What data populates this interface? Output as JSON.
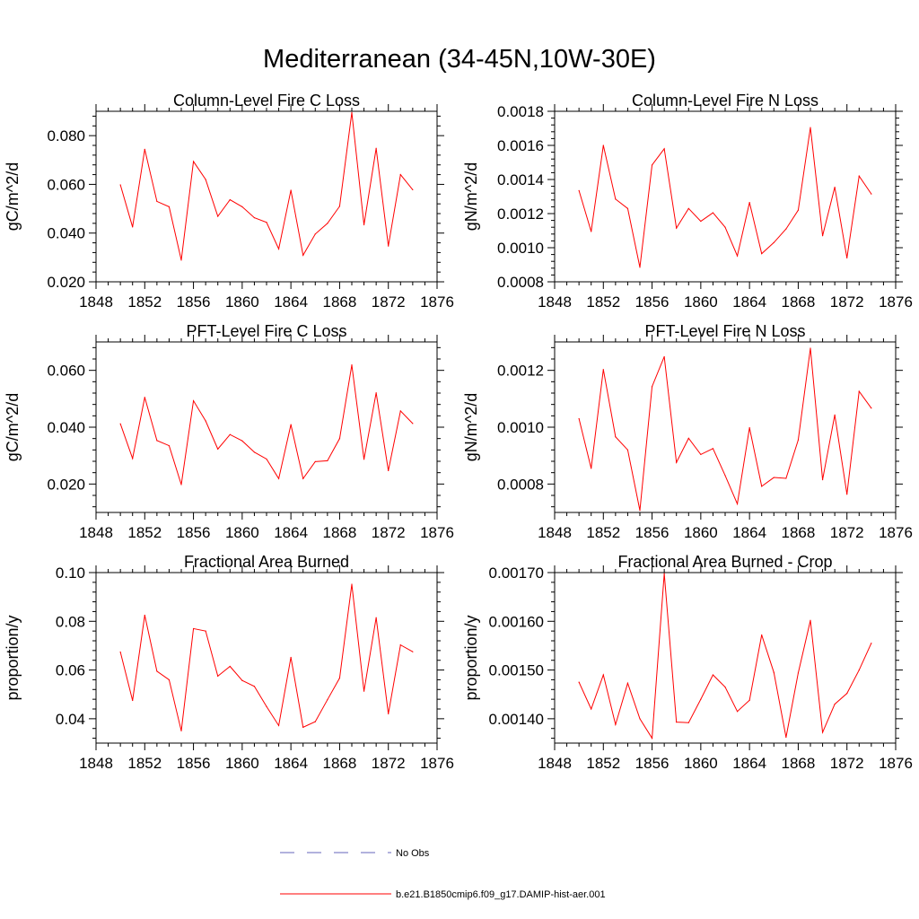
{
  "page": {
    "title": "Mediterranean (34-45N,10W-30E)"
  },
  "legend": {
    "items": [
      {
        "label": "No Obs",
        "color": "#6666bb",
        "dash": true
      },
      {
        "label": "b.e21.B1850cmip6.f09_g17.DAMIP-hist-aer.001",
        "color": "#ff0000",
        "dash": false
      }
    ]
  },
  "chart_data": [
    {
      "type": "line",
      "title": "Column-Level Fire C Loss",
      "ylabel": "gC/m^2/d",
      "xlim": [
        1848,
        1876
      ],
      "ylim": [
        0.02,
        0.09
      ],
      "xticks": [
        "1848",
        "1852",
        "1856",
        "1860",
        "1864",
        "1868",
        "1872",
        "1876"
      ],
      "yticks": [
        0.02,
        0.04,
        0.06,
        0.08
      ],
      "ytick_labels": [
        "0.020",
        "0.040",
        "0.060",
        "0.080"
      ],
      "x": [
        1850,
        1851,
        1852,
        1853,
        1854,
        1855,
        1856,
        1857,
        1858,
        1859,
        1860,
        1861,
        1862,
        1863,
        1864,
        1865,
        1866,
        1867,
        1868,
        1869,
        1870,
        1871,
        1872,
        1873,
        1874
      ],
      "series": [
        {
          "color": "#ff0000",
          "values": [
            0.0598,
            0.0425,
            0.0744,
            0.053,
            0.0508,
            0.0289,
            0.0694,
            0.062,
            0.0469,
            0.0537,
            0.0508,
            0.0463,
            0.0444,
            0.0335,
            0.0576,
            0.0309,
            0.0396,
            0.044,
            0.051,
            0.0895,
            0.0434,
            0.0748,
            0.0347,
            0.064,
            0.0578
          ]
        }
      ]
    },
    {
      "type": "line",
      "title": "Column-Level Fire N Loss",
      "ylabel": "gN/m^2/d",
      "xlim": [
        1848,
        1876
      ],
      "ylim": [
        0.0008,
        0.0018
      ],
      "xticks": [
        "1848",
        "1852",
        "1856",
        "1860",
        "1864",
        "1868",
        "1872",
        "1876"
      ],
      "yticks": [
        0.0008,
        0.001,
        0.0012,
        0.0014,
        0.0016,
        0.0018
      ],
      "ytick_labels": [
        "0.0008",
        "0.0010",
        "0.0012",
        "0.0014",
        "0.0016",
        "0.0018"
      ],
      "x": [
        1850,
        1851,
        1852,
        1853,
        1854,
        1855,
        1856,
        1857,
        1858,
        1859,
        1860,
        1861,
        1862,
        1863,
        1864,
        1865,
        1866,
        1867,
        1868,
        1869,
        1870,
        1871,
        1872,
        1873,
        1874
      ],
      "series": [
        {
          "color": "#ff0000",
          "values": [
            0.001335,
            0.001095,
            0.0016,
            0.001285,
            0.00123,
            0.000885,
            0.001485,
            0.00158,
            0.001115,
            0.00123,
            0.001155,
            0.001205,
            0.00112,
            0.000952,
            0.001265,
            0.000965,
            0.00103,
            0.00111,
            0.00122,
            0.001705,
            0.00107,
            0.001355,
            0.00094,
            0.00142,
            0.001315
          ]
        }
      ]
    },
    {
      "type": "line",
      "title": "PFT-Level Fire C Loss",
      "ylabel": "gC/m^2/d",
      "xlim": [
        1848,
        1876
      ],
      "ylim": [
        0.01,
        0.07
      ],
      "xticks": [
        "1848",
        "1852",
        "1856",
        "1860",
        "1864",
        "1868",
        "1872",
        "1876"
      ],
      "yticks": [
        0.02,
        0.04,
        0.06
      ],
      "ytick_labels": [
        "0.020",
        "0.040",
        "0.060"
      ],
      "x": [
        1850,
        1851,
        1852,
        1853,
        1854,
        1855,
        1856,
        1857,
        1858,
        1859,
        1860,
        1861,
        1862,
        1863,
        1864,
        1865,
        1866,
        1867,
        1868,
        1869,
        1870,
        1871,
        1872,
        1873,
        1874
      ],
      "series": [
        {
          "color": "#ff0000",
          "values": [
            0.0412,
            0.029,
            0.0505,
            0.0353,
            0.0335,
            0.0198,
            0.0493,
            0.0422,
            0.0323,
            0.0374,
            0.0352,
            0.0312,
            0.0288,
            0.0219,
            0.0409,
            0.0219,
            0.0279,
            0.0282,
            0.036,
            0.0619,
            0.0287,
            0.0521,
            0.0247,
            0.0457,
            0.0413
          ]
        }
      ]
    },
    {
      "type": "line",
      "title": "PFT-Level Fire N Loss",
      "ylabel": "gN/m^2/d",
      "xlim": [
        1848,
        1876
      ],
      "ylim": [
        0.0007,
        0.0013
      ],
      "xticks": [
        "1848",
        "1852",
        "1856",
        "1860",
        "1864",
        "1868",
        "1872",
        "1876"
      ],
      "yticks": [
        0.0008,
        0.001,
        0.0012
      ],
      "ytick_labels": [
        "0.0008",
        "0.0010",
        "0.0012"
      ],
      "x": [
        1850,
        1851,
        1852,
        1853,
        1854,
        1855,
        1856,
        1857,
        1858,
        1859,
        1860,
        1861,
        1862,
        1863,
        1864,
        1865,
        1866,
        1867,
        1868,
        1869,
        1870,
        1871,
        1872,
        1873,
        1874
      ],
      "series": [
        {
          "color": "#ff0000",
          "values": [
            0.00103,
            0.000855,
            0.001203,
            0.000966,
            0.00092,
            0.000707,
            0.001143,
            0.001248,
            0.000876,
            0.000961,
            0.000904,
            0.000925,
            0.00083,
            0.00073,
            0.000998,
            0.000792,
            0.000823,
            0.00082,
            0.000955,
            0.001278,
            0.000815,
            0.001043,
            0.000764,
            0.001126,
            0.001067
          ]
        }
      ]
    },
    {
      "type": "line",
      "title": "Fractional Area Burned",
      "ylabel": "proportion/y",
      "xlim": [
        1848,
        1876
      ],
      "ylim": [
        0.03,
        0.1
      ],
      "xticks": [
        "1848",
        "1852",
        "1856",
        "1860",
        "1864",
        "1868",
        "1872",
        "1876"
      ],
      "yticks": [
        0.04,
        0.06,
        0.08,
        0.1
      ],
      "ytick_labels": [
        "0.04",
        "0.06",
        "0.08",
        "0.10"
      ],
      "x": [
        1850,
        1851,
        1852,
        1853,
        1854,
        1855,
        1856,
        1857,
        1858,
        1859,
        1860,
        1861,
        1862,
        1863,
        1864,
        1865,
        1866,
        1867,
        1868,
        1869,
        1870,
        1871,
        1872,
        1873,
        1874
      ],
      "series": [
        {
          "color": "#ff0000",
          "values": [
            0.0674,
            0.0475,
            0.0825,
            0.0595,
            0.056,
            0.035,
            0.077,
            0.076,
            0.0575,
            0.0615,
            0.0557,
            0.0533,
            0.045,
            0.0372,
            0.0652,
            0.0365,
            0.0388,
            0.0478,
            0.0567,
            0.0952,
            0.0513,
            0.0815,
            0.042,
            0.0703,
            0.0675
          ]
        }
      ]
    },
    {
      "type": "line",
      "title": "Fractional Area Burned - Crop",
      "ylabel": "proportion/y",
      "xlim": [
        1848,
        1876
      ],
      "ylim": [
        0.00135,
        0.0017
      ],
      "xticks": [
        "1848",
        "1852",
        "1856",
        "1860",
        "1864",
        "1868",
        "1872",
        "1876"
      ],
      "yticks": [
        0.0014,
        0.0015,
        0.0016,
        0.0017
      ],
      "ytick_labels": [
        "0.00140",
        "0.00150",
        "0.00160",
        "0.00170"
      ],
      "x": [
        1850,
        1851,
        1852,
        1853,
        1854,
        1855,
        1856,
        1857,
        1858,
        1859,
        1860,
        1861,
        1862,
        1863,
        1864,
        1865,
        1866,
        1867,
        1868,
        1869,
        1870,
        1871,
        1872,
        1873,
        1874
      ],
      "series": [
        {
          "color": "#ff0000",
          "values": [
            0.001475,
            0.00142,
            0.00149,
            0.001388,
            0.001473,
            0.0014,
            0.00136,
            0.001698,
            0.001393,
            0.001392,
            0.00144,
            0.00149,
            0.001465,
            0.001415,
            0.001438,
            0.001572,
            0.001495,
            0.001362,
            0.001494,
            0.001602,
            0.001372,
            0.00143,
            0.001452,
            0.0015,
            0.001555
          ]
        }
      ]
    }
  ]
}
